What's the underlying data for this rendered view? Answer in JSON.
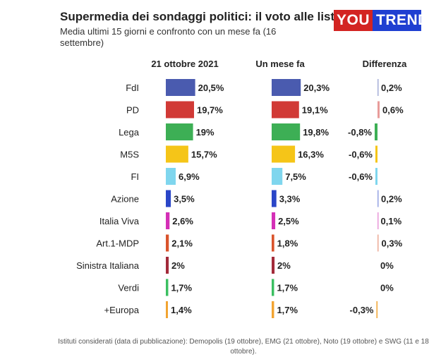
{
  "header": {
    "title": "Supermedia dei sondaggi politici: il voto alle liste",
    "subtitle": "Media ultimi 15 giorni e confronto con un mese fa (16 settembre)",
    "logo_left": "YOU",
    "logo_right": "TREND"
  },
  "colors": {
    "brand_red": "#d32422",
    "brand_blue": "#1f3fd1"
  },
  "chart_data": {
    "type": "bar",
    "title": "Supermedia dei sondaggi politici: il voto alle liste",
    "column_headers": [
      "21 ottobre 2021",
      "Un mese fa",
      "Differenza"
    ],
    "categories": [
      "FdI",
      "PD",
      "Lega",
      "M5S",
      "FI",
      "Azione",
      "Italia Viva",
      "Art.1-MDP",
      "Sinistra Italiana",
      "Verdi",
      "+Europa"
    ],
    "colors": [
      "#4a5baf",
      "#d13a36",
      "#3daf55",
      "#f5c518",
      "#7fd6ee",
      "#2a46c8",
      "#d42fb6",
      "#d9542c",
      "#a22a3a",
      "#3bbf61",
      "#f2a431"
    ],
    "series": [
      {
        "name": "21 ottobre 2021",
        "values": [
          20.5,
          19.7,
          19,
          15.7,
          6.9,
          3.5,
          2.6,
          2.1,
          2,
          1.7,
          1.4
        ],
        "labels": [
          "20,5%",
          "19,7%",
          "19%",
          "15,7%",
          "6,9%",
          "3,5%",
          "2,6%",
          "2,1%",
          "2%",
          "1,7%",
          "1,4%"
        ]
      },
      {
        "name": "Un mese fa",
        "values": [
          20.3,
          19.1,
          19.8,
          16.3,
          7.5,
          3.3,
          2.5,
          1.8,
          2,
          1.7,
          1.7
        ],
        "labels": [
          "20,3%",
          "19,1%",
          "19,8%",
          "16,3%",
          "7,5%",
          "3,3%",
          "2,5%",
          "1,8%",
          "2%",
          "1,7%",
          "1,7%"
        ]
      },
      {
        "name": "Differenza",
        "values": [
          0.2,
          0.6,
          -0.8,
          -0.6,
          -0.6,
          0.2,
          0.1,
          0.3,
          0,
          0,
          -0.3
        ],
        "labels": [
          "0,2%",
          "0,6%",
          "-0,8%",
          "-0,6%",
          "-0,6%",
          "0,2%",
          "0,1%",
          "0,3%",
          "0%",
          "0%",
          "-0,3%"
        ]
      }
    ]
  },
  "footer": {
    "note": "Istituti considerati (data di pubblicazione): Demopolis (19 ottobre), EMG (21 ottobre), Noto (19 ottobre) e SWG (11 e 18 ottobre)."
  }
}
